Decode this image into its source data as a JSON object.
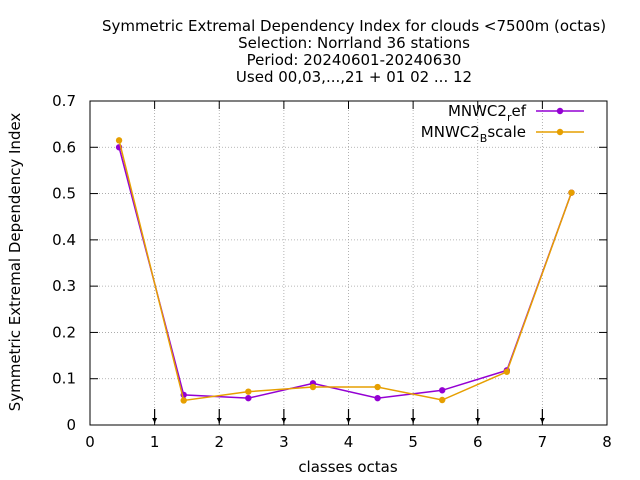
{
  "chart_data": {
    "type": "line",
    "title_lines": [
      "Symmetric Extremal Dependency Index  for clouds <7500m (octas)",
      "Selection: Norrland     36 stations",
      "Period: 20240601-20240630",
      "Used 00,03,...,21 + 01 02 ... 12"
    ],
    "xlabel": "classes octas",
    "ylabel": "Symmetric Extremal Dependency Index",
    "xlim": [
      0,
      8
    ],
    "ylim": [
      0,
      0.7
    ],
    "xticks": [
      0,
      1,
      2,
      3,
      4,
      5,
      6,
      7,
      8
    ],
    "xtick_labels": [
      "0",
      "1",
      "2",
      "3",
      "4",
      "5",
      "6",
      "7",
      "8"
    ],
    "yticks": [
      0,
      0.1,
      0.2,
      0.3,
      0.4,
      0.5,
      0.6,
      0.7
    ],
    "ytick_labels": [
      "0",
      "0.1",
      "0.2",
      "0.3",
      "0.4",
      "0.5",
      "0.6",
      "0.7"
    ],
    "grid": true,
    "legend_position": "top-right",
    "class_boundary_markers": [
      1,
      2,
      3,
      4,
      5,
      6,
      7
    ],
    "series": [
      {
        "name": "MNWC2_ref",
        "legend_main": "MNWC2",
        "legend_sub": "r",
        "legend_tail": "ef",
        "color": "#9400d3",
        "x": [
          0.45,
          1.45,
          2.45,
          3.45,
          4.45,
          5.45,
          6.45,
          7.45
        ],
        "y": [
          0.6,
          0.065,
          0.058,
          0.09,
          0.058,
          0.075,
          0.118,
          0.502
        ]
      },
      {
        "name": "MNWC2_Bscale",
        "legend_main": "MNWC2",
        "legend_sub": "B",
        "legend_tail": "scale",
        "color": "#e69f00",
        "x": [
          0.45,
          1.45,
          2.45,
          3.45,
          4.45,
          5.45,
          6.45,
          7.45
        ],
        "y": [
          0.615,
          0.053,
          0.072,
          0.082,
          0.082,
          0.054,
          0.115,
          0.502
        ]
      }
    ]
  }
}
